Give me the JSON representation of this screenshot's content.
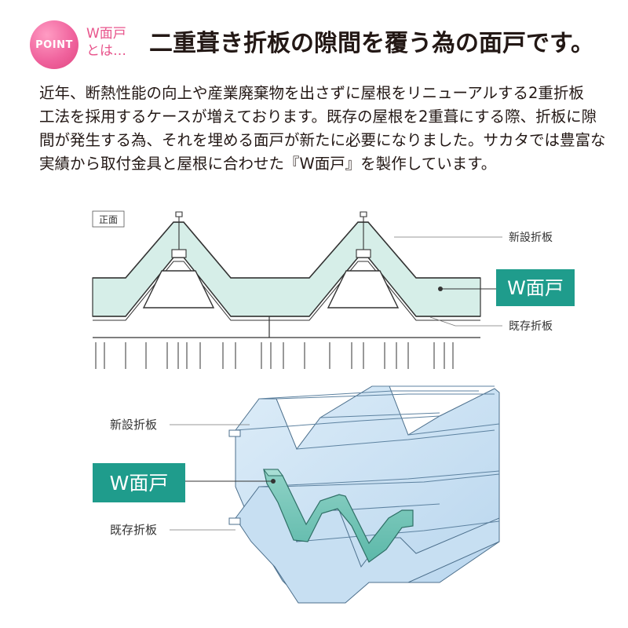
{
  "header": {
    "badge": "POINT",
    "sub_line1": "W面戸",
    "sub_line2": "とは…",
    "title": "二重葺き折板の隙間を覆う為の面戸です。"
  },
  "body": {
    "lines": [
      "近年、断熱性能の向上や産業廃棄物を出さずに屋根をリニューアルする2重折板",
      "工法を採用するケースが増えております。既存の屋根を2重葺にする際、折板に隙",
      "間が発生する為、それを埋める面戸が新たに必要になりました。サカタでは豊富な",
      "実績から取付金具と屋根に合わせた『W面戸』を製作しています。"
    ]
  },
  "front_view": {
    "view_label": "正面",
    "label_new_panel": "新設折板",
    "label_w_mendo": "W面戸",
    "label_existing_panel": "既存折板"
  },
  "perspective_view": {
    "label_new_panel": "新設折板",
    "label_w_mendo": "W面戸",
    "label_existing_panel": "既存折板"
  },
  "colors": {
    "accent_pink": "#e8558c",
    "teal_label": "#1f9c8c",
    "mendo_fill": "#d3ece5",
    "sky_panel": "#cfe4f4"
  }
}
